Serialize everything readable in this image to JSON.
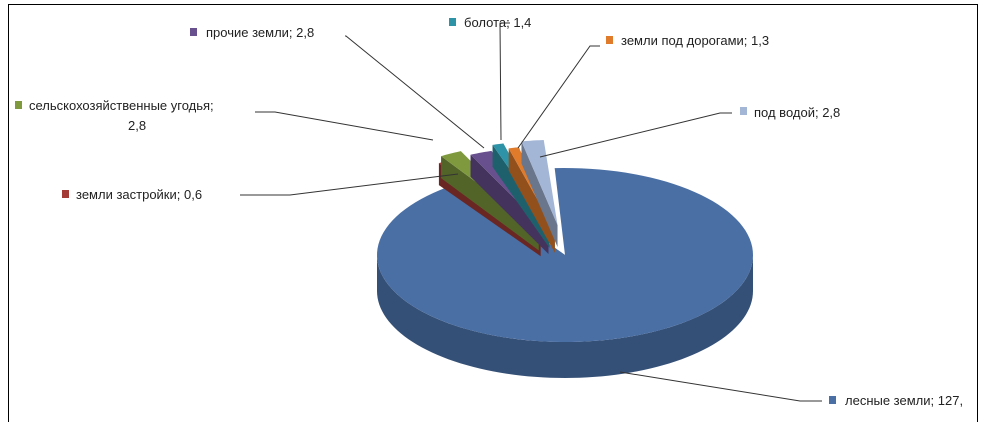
{
  "chart_data": {
    "type": "pie",
    "three_d": true,
    "exploded": true,
    "legend": "none",
    "slices": [
      {
        "label": "лесные земли",
        "value_label": "127,",
        "value": 127,
        "color": "#4a6fa5"
      },
      {
        "label": "земли застройки",
        "value_label": "0,6",
        "value": 0.6,
        "color": "#a33a36"
      },
      {
        "label": "сельскохозяйственные угодья;",
        "value_label": "2,8",
        "value": 2.8,
        "color": "#7f9a3e"
      },
      {
        "label": "прочие земли",
        "value_label": "2,8",
        "value": 2.8,
        "color": "#68508f"
      },
      {
        "label": "болота",
        "value_label": "1,4",
        "value": 1.4,
        "color": "#2f93a8"
      },
      {
        "label": "земли под дорогами",
        "value_label": "1,3",
        "value": 1.3,
        "color": "#e07b2c"
      },
      {
        "label": "под водой",
        "value_label": "2,8",
        "value": 2.8,
        "color": "#a3b6d6"
      }
    ]
  }
}
